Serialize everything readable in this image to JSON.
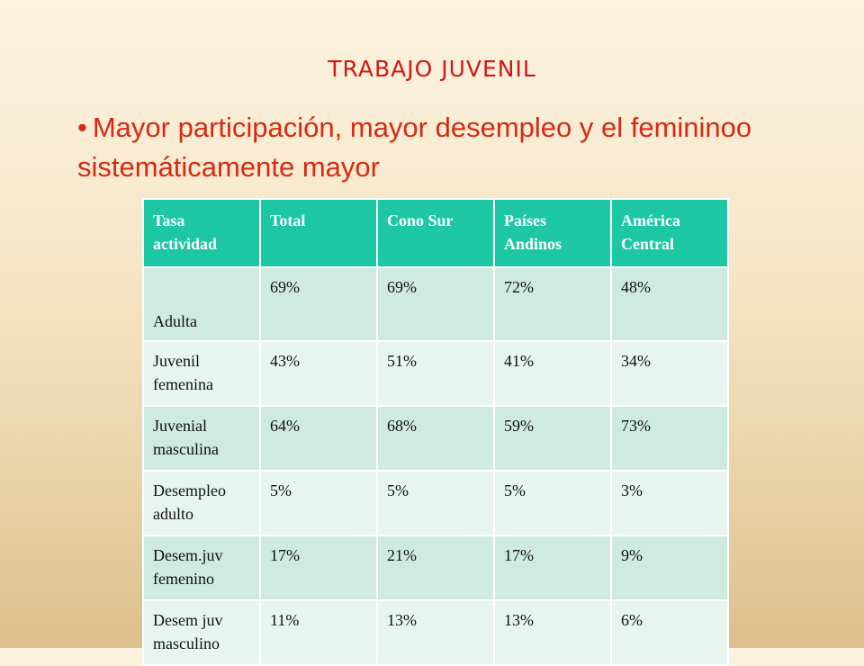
{
  "slide": {
    "title": "TRABAJO JUVENIL",
    "bullet_marker": "•",
    "bullet_text": "Mayor participación, mayor desempleo y el femininoo sistemáticamente mayor"
  },
  "table": {
    "headers": [
      "Tasa actividad",
      " Total",
      "Cono Sur",
      "Países Andinos",
      "América Central"
    ],
    "rows": [
      [
        "Adulta",
        " 69%",
        " 69%",
        "72%",
        "48%"
      ],
      [
        "Juvenil femenina",
        "43%",
        "51%",
        "41%",
        "34%"
      ],
      [
        "Juvenial masculina",
        "64%",
        "68%",
        "59%",
        "73%"
      ],
      [
        "Desempleo adulto",
        " 5%",
        " 5%",
        " 5%",
        "3%"
      ],
      [
        "Desem.juv femenino",
        " 17%",
        "21%",
        "17%",
        "9%"
      ],
      [
        "Desem juv masculino",
        "11%",
        "13%",
        "13%",
        "6%"
      ]
    ]
  },
  "colors": {
    "title": "#cc1a1a",
    "bullet": "#d62a14",
    "header_bg": "#1ec7a4",
    "row_odd": "#cfeae1",
    "row_even": "#e8f4ef"
  }
}
